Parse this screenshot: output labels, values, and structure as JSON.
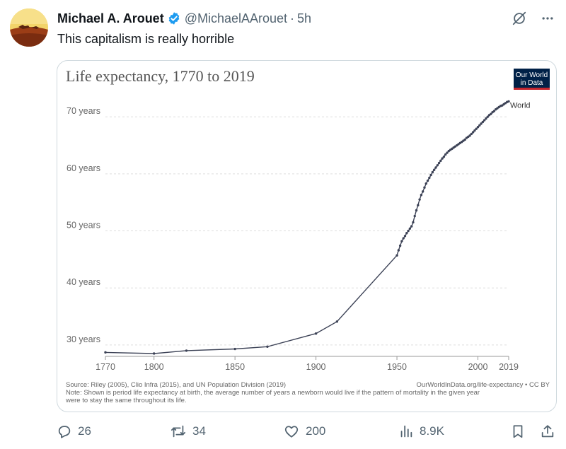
{
  "tweet": {
    "author_name": "Michael A. Arouet",
    "handle": "@MichaelAArouet",
    "separator": "·",
    "time": "5h",
    "text": "This capitalism is really horrible"
  },
  "icons": {
    "verified": "verified-badge-icon",
    "grok": "grok-icon",
    "more": "more-icon",
    "reply": "reply-icon",
    "retweet": "retweet-icon",
    "like": "like-icon",
    "views": "views-icon",
    "bookmark": "bookmark-icon",
    "share": "share-icon"
  },
  "colors": {
    "accent_blue": "#1d9bf0",
    "text_primary": "#0f1419",
    "text_secondary": "#536471",
    "owid_navy": "#002147",
    "owid_red": "#c4262e",
    "line": "#3c4256"
  },
  "actions": {
    "replies": "26",
    "retweets": "34",
    "likes": "200",
    "views": "8.9K"
  },
  "chart_data": {
    "type": "line",
    "title": "Life expectancy, 1770 to 2019",
    "logo_line1": "Our World",
    "logo_line2": "in Data",
    "xlabel": "",
    "ylabel": "",
    "xlim": [
      1770,
      2019
    ],
    "ylim": [
      28,
      73
    ],
    "x_ticks": [
      1770,
      1800,
      1850,
      1900,
      1950,
      2000,
      2019
    ],
    "y_ticks": [
      {
        "value": 30,
        "label": "30 years"
      },
      {
        "value": 40,
        "label": "40 years"
      },
      {
        "value": 50,
        "label": "50 years"
      },
      {
        "value": 60,
        "label": "60 years"
      },
      {
        "value": 70,
        "label": "70 years"
      }
    ],
    "grid": true,
    "series": [
      {
        "name": "World",
        "x": [
          1770,
          1800,
          1820,
          1850,
          1870,
          1900,
          1913,
          1950,
          1951,
          1952,
          1953,
          1954,
          1955,
          1956,
          1957,
          1958,
          1959,
          1960,
          1961,
          1962,
          1963,
          1964,
          1965,
          1966,
          1967,
          1968,
          1969,
          1970,
          1971,
          1972,
          1973,
          1974,
          1975,
          1976,
          1977,
          1978,
          1979,
          1980,
          1981,
          1982,
          1983,
          1984,
          1985,
          1986,
          1987,
          1988,
          1989,
          1990,
          1991,
          1992,
          1993,
          1994,
          1995,
          1996,
          1997,
          1998,
          1999,
          2000,
          2001,
          2002,
          2003,
          2004,
          2005,
          2006,
          2007,
          2008,
          2009,
          2010,
          2011,
          2012,
          2013,
          2014,
          2015,
          2016,
          2017,
          2018,
          2019
        ],
        "y": [
          28.7,
          28.5,
          29.0,
          29.3,
          29.7,
          32.0,
          34.1,
          45.7,
          46.6,
          47.4,
          48.2,
          48.7,
          49.1,
          49.6,
          50.0,
          50.4,
          50.8,
          51.5,
          52.6,
          53.6,
          54.5,
          55.5,
          56.3,
          56.9,
          57.6,
          58.3,
          58.8,
          59.3,
          59.8,
          60.3,
          60.7,
          61.1,
          61.5,
          61.9,
          62.3,
          62.7,
          63.0,
          63.4,
          63.7,
          64.0,
          64.2,
          64.4,
          64.6,
          64.8,
          65.0,
          65.2,
          65.4,
          65.6,
          65.8,
          66.0,
          66.3,
          66.5,
          66.7,
          67.0,
          67.3,
          67.6,
          67.9,
          68.2,
          68.5,
          68.8,
          69.1,
          69.4,
          69.7,
          70.0,
          70.3,
          70.5,
          70.8,
          71.0,
          71.3,
          71.5,
          71.7,
          71.9,
          72.0,
          72.2,
          72.4,
          72.6,
          72.7
        ]
      }
    ],
    "source": "Source: Riley (2005), Clio Infra (2015), and UN Population Division (2019)",
    "url_credit": "OurWorldInData.org/life-expectancy • CC BY",
    "note_line1": "Note: Shown is period life expectancy at birth, the average number of years a newborn would live if the pattern of mortality in the given year",
    "note_line2": "were to stay the same throughout its life."
  }
}
